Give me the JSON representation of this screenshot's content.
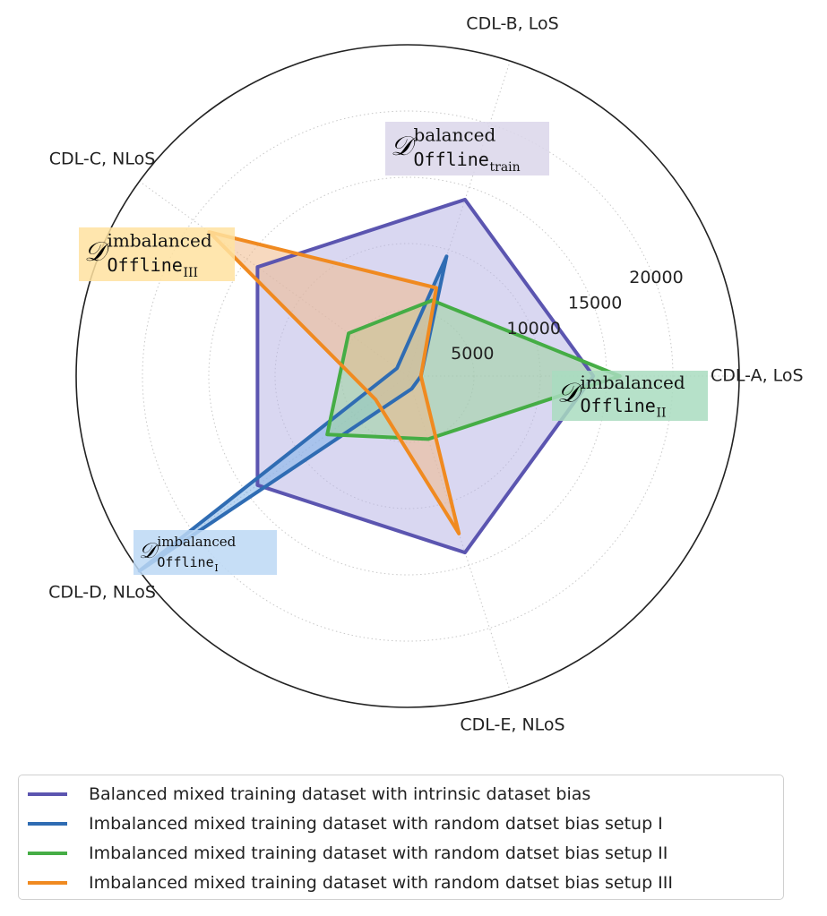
{
  "chart_data": {
    "type": "radar",
    "axes": [
      "CDL-A, LoS",
      "CDL-B, LoS",
      "CDL-C, NLoS",
      "CDL-D, NLoS",
      "CDL-E, NLoS"
    ],
    "r_ticks": [
      "5000",
      "10000",
      "15000",
      "20000"
    ],
    "rlim": [
      0,
      25000
    ],
    "grid": true,
    "legend_position": "bottom",
    "series": [
      {
        "name": "Balanced mixed training dataset with intrinsic dataset bias",
        "color": "#5b55b0",
        "fill": "#b9b6e6",
        "values": [
          14000,
          14000,
          14000,
          14000,
          14000
        ]
      },
      {
        "name": "Imbalanced mixed training dataset with random datset bias setup I",
        "color": "#2f6cb3",
        "fill": "#7fb3e8",
        "values": [
          1000,
          9500,
          1000,
          25000,
          1000
        ]
      },
      {
        "name": "Imbalanced mixed training dataset with random datset bias setup II",
        "color": "#45ad45",
        "fill": "#9bd39b",
        "values": [
          16000,
          6000,
          5500,
          7500,
          5000
        ]
      },
      {
        "name": "Imbalanced mixed training dataset with random datset bias setup III",
        "color": "#f08a20",
        "fill": "#f1b98a",
        "values": [
          1000,
          7000,
          18500,
          3000,
          12500
        ]
      }
    ],
    "annotations": [
      {
        "base": "𝒟",
        "sup": "balanced",
        "sub": "Offline",
        "subsub": "train",
        "bg": "#dbd6ea"
      },
      {
        "base": "𝒟",
        "sup": "imbalanced",
        "sub": "Offline",
        "subsub": "III",
        "bg": "#ffe2a0"
      },
      {
        "base": "𝒟",
        "sup": "imbalanced",
        "sub": "Offline",
        "subsub": "II",
        "bg": "#a9dcc0"
      },
      {
        "base": "𝒟",
        "sup": "imbalanced",
        "sub": "Offline",
        "subsub": "I",
        "bg": "#bcd8f5"
      }
    ]
  }
}
